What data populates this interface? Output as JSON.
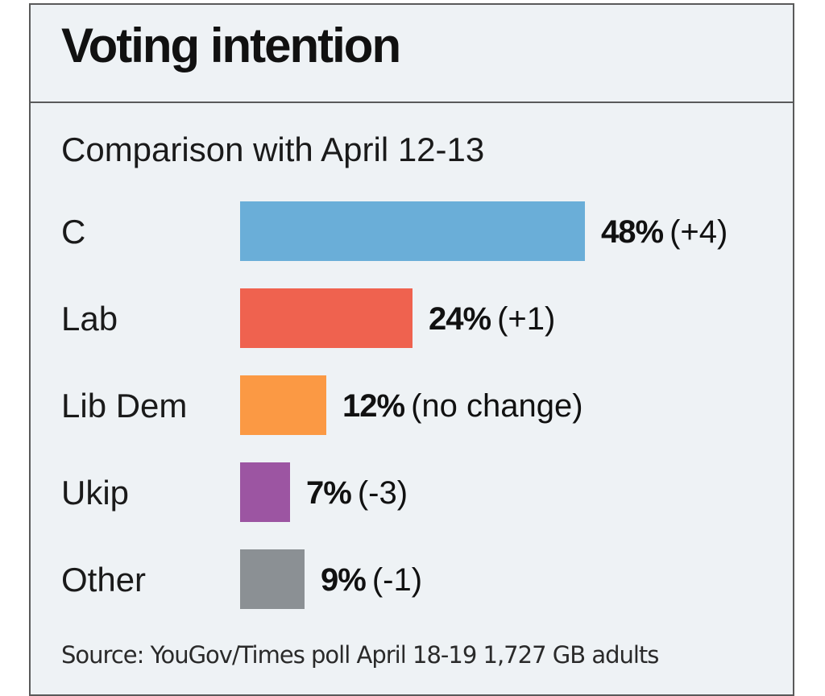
{
  "chart_data": {
    "type": "bar",
    "orientation": "horizontal",
    "title": "Voting intention",
    "subtitle": "Comparison with April 12-13",
    "categories": [
      "C",
      "Lab",
      "Lib Dem",
      "Ukip",
      "Other"
    ],
    "values": [
      48,
      24,
      12,
      7,
      9
    ],
    "value_labels": [
      "48%",
      "24%",
      "12%",
      "7%",
      "9%"
    ],
    "change_labels": [
      "(+4)",
      "(+1)",
      "(no change)",
      "(-3)",
      "(-1)"
    ],
    "colors": [
      "#6aaed8",
      "#ef624f",
      "#fb9944",
      "#9c55a2",
      "#8b9094"
    ],
    "xlim": [
      0,
      48
    ],
    "source": "Source: YouGov/Times poll April 18-19 1,727 GB adults"
  }
}
